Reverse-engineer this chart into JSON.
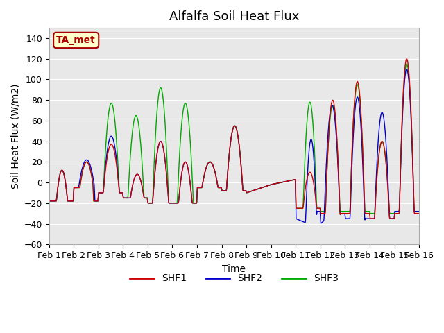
{
  "title": "Alfalfa Soil Heat Flux",
  "xlabel": "Time",
  "ylabel": "Soil Heat Flux (W/m2)",
  "ylim": [
    -60,
    150
  ],
  "yticks": [
    -60,
    -40,
    -20,
    0,
    20,
    40,
    60,
    80,
    100,
    120,
    140
  ],
  "xtick_labels": [
    "Feb 1",
    "Feb 2",
    "Feb 3",
    "Feb 4",
    "Feb 5",
    "Feb 6",
    "Feb 7",
    "Feb 8",
    "Feb 9",
    "Feb 10",
    "Feb 11",
    "Feb 12",
    "Feb 13",
    "Feb 14",
    "Feb 15",
    "Feb 16"
  ],
  "colors": {
    "SHF1": "#cc0000",
    "SHF2": "#0000cc",
    "SHF3": "#00aa00"
  },
  "annotation_text": "TA_met",
  "annotation_color": "#aa0000",
  "annotation_bg": "#ffffcc",
  "background_color": "#e8e8e8",
  "plot_bg": "#e8e8e8",
  "title_fontsize": 13,
  "axis_label_fontsize": 10,
  "tick_fontsize": 9,
  "legend_fontsize": 10
}
